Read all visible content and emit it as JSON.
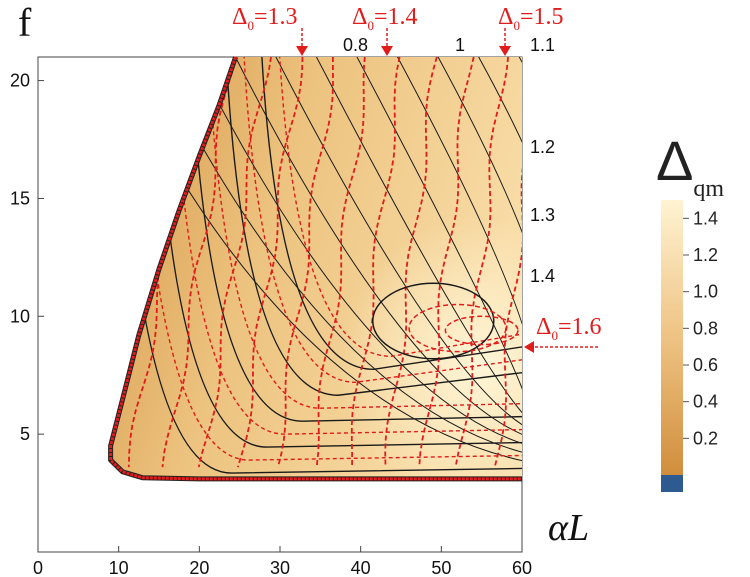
{
  "chart_data": {
    "type": "contour",
    "xlabel": "αL",
    "ylabel": "f",
    "xlim": [
      0,
      60
    ],
    "ylim": [
      0,
      21
    ],
    "x_ticks": [
      0,
      10,
      20,
      30,
      40,
      50,
      60
    ],
    "y_ticks": [
      5,
      10,
      15,
      20
    ],
    "colorbar": {
      "label_main": "Δ",
      "label_sub": "qm",
      "ticks": [
        "0.2",
        "0.4",
        "0.6",
        "0.8",
        "1.0",
        "1.2",
        "1.4"
      ],
      "range": [
        0,
        1.5
      ],
      "gradient_colors": [
        "#d08e3c",
        "#f3d39a",
        "#fff3d2"
      ],
      "base_color": "#2e5b8f"
    },
    "black_contour_labels": [
      "0.8",
      "1",
      "1.1",
      "1.2",
      "1.3",
      "1.4"
    ],
    "red_annotations": [
      {
        "text_main": "Δ",
        "text_sub": "0",
        "text_value": "=1.3",
        "x": 33.5
      },
      {
        "text_main": "Δ",
        "text_sub": "0",
        "text_value": "=1.4",
        "x": 44
      },
      {
        "text_main": "Δ",
        "text_sub": "0",
        "text_value": "=1.5",
        "x": 58.5
      },
      {
        "text_main": "Δ",
        "text_sub": "0",
        "text_value": "=1.6",
        "y": 9.3
      }
    ],
    "contour_color_solid": "#1a1a1a",
    "contour_color_dashed": "#e21b1b",
    "boundary_color": "#e21b1b"
  }
}
